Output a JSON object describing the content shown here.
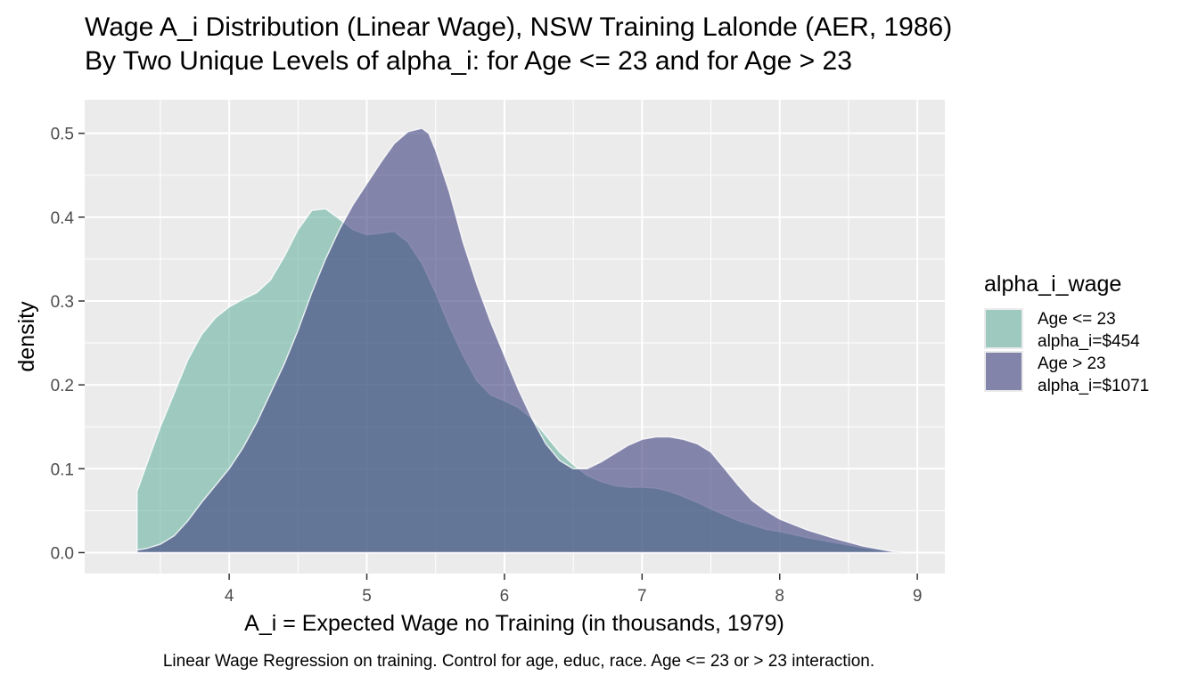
{
  "chart_data": {
    "type": "area",
    "subtype": "density",
    "title": "Wage A_i Distribution (Linear Wage), NSW Training Lalonde (AER, 1986)",
    "subtitle": "By Two Unique Levels of alpha_i: for Age <= 23 and for Age > 23",
    "xlabel": "A_i = Expected Wage no Training (in thousands, 1979)",
    "ylabel": "density",
    "caption": "Linear Wage Regression on training. Control for age, educ, race. Age <= 23 or > 23 interaction.",
    "xlim": [
      2.95,
      9.2
    ],
    "ylim": [
      -0.025,
      0.54
    ],
    "x_ticks": [
      4,
      5,
      6,
      7,
      8,
      9
    ],
    "y_ticks": [
      0.0,
      0.1,
      0.2,
      0.3,
      0.4,
      0.5
    ],
    "x_tick_labels": [
      "4",
      "5",
      "6",
      "7",
      "8",
      "9"
    ],
    "y_tick_labels": [
      "0.0",
      "0.1",
      "0.2",
      "0.3",
      "0.4",
      "0.5"
    ],
    "grid": true,
    "legend_position": "right",
    "legend_title": "alpha_i_wage",
    "series": [
      {
        "name": "Age <= 23\nalpha_i=$454",
        "label_lines": [
          "Age <= 23",
          "alpha_i=$454"
        ],
        "color": "#69b3a2",
        "opacity": 0.6,
        "x": [
          3.33,
          3.4,
          3.5,
          3.6,
          3.7,
          3.8,
          3.9,
          4.0,
          4.1,
          4.2,
          4.3,
          4.4,
          4.5,
          4.6,
          4.7,
          4.8,
          4.9,
          5.0,
          5.1,
          5.2,
          5.3,
          5.4,
          5.5,
          5.6,
          5.7,
          5.8,
          5.9,
          6.0,
          6.1,
          6.2,
          6.3,
          6.4,
          6.5,
          6.6,
          6.7,
          6.8,
          6.9,
          7.0,
          7.1,
          7.2,
          7.3,
          7.4,
          7.5,
          7.6,
          7.7,
          7.8,
          7.9,
          8.0,
          8.2,
          8.4,
          8.6,
          8.8,
          8.9
        ],
        "y": [
          0.073,
          0.105,
          0.15,
          0.19,
          0.23,
          0.26,
          0.28,
          0.293,
          0.302,
          0.31,
          0.325,
          0.353,
          0.385,
          0.408,
          0.41,
          0.398,
          0.385,
          0.379,
          0.381,
          0.383,
          0.37,
          0.345,
          0.31,
          0.27,
          0.235,
          0.205,
          0.188,
          0.181,
          0.173,
          0.16,
          0.14,
          0.12,
          0.105,
          0.092,
          0.085,
          0.08,
          0.078,
          0.078,
          0.077,
          0.073,
          0.067,
          0.06,
          0.052,
          0.045,
          0.038,
          0.033,
          0.028,
          0.025,
          0.018,
          0.012,
          0.006,
          0.002,
          0.0
        ]
      },
      {
        "name": "Age > 23\nalpha_i=$1071",
        "label_lines": [
          "Age > 23",
          "alpha_i=$1071"
        ],
        "color": "#3e3f7f",
        "opacity": 0.6,
        "x": [
          3.33,
          3.4,
          3.5,
          3.6,
          3.7,
          3.8,
          3.9,
          4.0,
          4.1,
          4.2,
          4.3,
          4.4,
          4.5,
          4.6,
          4.7,
          4.8,
          4.9,
          5.0,
          5.1,
          5.2,
          5.3,
          5.4,
          5.45,
          5.5,
          5.6,
          5.7,
          5.8,
          5.9,
          6.0,
          6.1,
          6.2,
          6.3,
          6.4,
          6.5,
          6.6,
          6.7,
          6.8,
          6.9,
          7.0,
          7.1,
          7.2,
          7.3,
          7.4,
          7.5,
          7.6,
          7.7,
          7.8,
          7.9,
          8.0,
          8.2,
          8.4,
          8.6,
          8.8,
          8.9
        ],
        "y": [
          0.003,
          0.005,
          0.01,
          0.02,
          0.038,
          0.06,
          0.08,
          0.1,
          0.125,
          0.155,
          0.19,
          0.225,
          0.265,
          0.31,
          0.35,
          0.385,
          0.415,
          0.44,
          0.465,
          0.488,
          0.502,
          0.506,
          0.5,
          0.48,
          0.43,
          0.37,
          0.32,
          0.275,
          0.235,
          0.195,
          0.16,
          0.13,
          0.11,
          0.1,
          0.1,
          0.108,
          0.118,
          0.128,
          0.135,
          0.138,
          0.138,
          0.135,
          0.13,
          0.12,
          0.1,
          0.08,
          0.062,
          0.05,
          0.04,
          0.027,
          0.017,
          0.008,
          0.002,
          0.0
        ]
      }
    ]
  }
}
